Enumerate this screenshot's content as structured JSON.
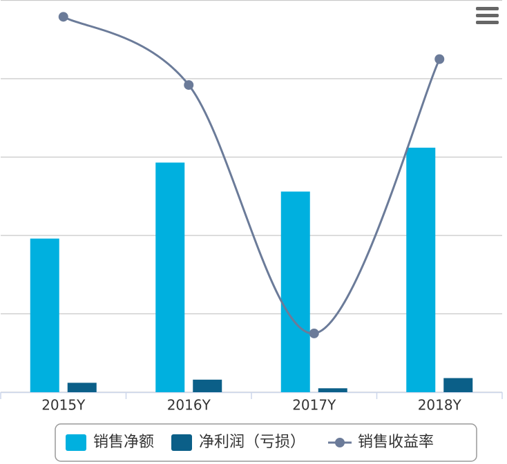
{
  "chart_data": {
    "type": "bar_line",
    "categories": [
      "2015Y",
      "2016Y",
      "2017Y",
      "2018Y"
    ],
    "series": [
      {
        "name": "销售净额",
        "type": "bar",
        "color": "#00b0df",
        "values": [
          1.96,
          2.93,
          2.56,
          3.12
        ]
      },
      {
        "name": "净利润（亏损）",
        "type": "bar",
        "color": "#0b5f88",
        "values": [
          0.12,
          0.16,
          0.05,
          0.18
        ]
      },
      {
        "name": "销售收益率",
        "type": "spline",
        "color": "#6b7b99",
        "values": [
          4.79,
          3.92,
          0.75,
          4.25
        ]
      }
    ],
    "ylim": [
      0,
      5
    ],
    "yticks": [
      0,
      1,
      2,
      3,
      4,
      5
    ],
    "grid": true,
    "legend": "bottom"
  }
}
